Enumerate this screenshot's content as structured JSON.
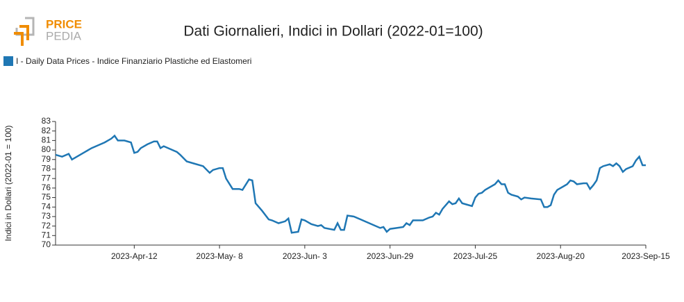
{
  "logo": {
    "top": "PRICE",
    "bottom": "PEDIA"
  },
  "chart_data": {
    "type": "line",
    "title": "Dati Giornalieri, Indici in Dollari (2022-01=100)",
    "ylabel": "Indici in Dollari (2022-01 = 100)",
    "x": [
      "2023-03-19",
      "2023-03-21",
      "2023-03-23",
      "2023-03-24",
      "2023-03-26",
      "2023-03-28",
      "2023-03-30",
      "2023-04-01",
      "2023-04-03",
      "2023-04-05",
      "2023-04-06",
      "2023-04-07",
      "2023-04-09",
      "2023-04-11",
      "2023-04-12",
      "2023-04-13",
      "2023-04-14",
      "2023-04-16",
      "2023-04-18",
      "2023-04-19",
      "2023-04-20",
      "2023-04-21",
      "2023-04-23",
      "2023-04-25",
      "2023-04-26",
      "2023-04-28",
      "2023-04-30",
      "2023-05-03",
      "2023-05-05",
      "2023-05-06",
      "2023-05-08",
      "2023-05-09",
      "2023-05-10",
      "2023-05-12",
      "2023-05-14",
      "2023-05-15",
      "2023-05-17",
      "2023-05-18",
      "2023-05-19",
      "2023-05-21",
      "2023-05-23",
      "2023-05-24",
      "2023-05-26",
      "2023-05-28",
      "2023-05-29",
      "2023-05-30",
      "2023-06-01",
      "2023-06-02",
      "2023-06-03",
      "2023-06-05",
      "2023-06-07",
      "2023-06-08",
      "2023-06-09",
      "2023-06-12",
      "2023-06-13",
      "2023-06-14",
      "2023-06-15",
      "2023-06-16",
      "2023-06-18",
      "2023-06-20",
      "2023-06-22",
      "2023-06-24",
      "2023-06-26",
      "2023-06-27",
      "2023-06-28",
      "2023-06-29",
      "2023-07-01",
      "2023-07-03",
      "2023-07-04",
      "2023-07-05",
      "2023-07-06",
      "2023-07-09",
      "2023-07-11",
      "2023-07-12",
      "2023-07-13",
      "2023-07-14",
      "2023-07-15",
      "2023-07-17",
      "2023-07-18",
      "2023-07-19",
      "2023-07-20",
      "2023-07-21",
      "2023-07-22",
      "2023-07-24",
      "2023-07-25",
      "2023-07-26",
      "2023-07-27",
      "2023-07-28",
      "2023-07-31",
      "2023-08-01",
      "2023-08-02",
      "2023-08-03",
      "2023-08-04",
      "2023-08-05",
      "2023-08-07",
      "2023-08-08",
      "2023-08-09",
      "2023-08-11",
      "2023-08-14",
      "2023-08-15",
      "2023-08-16",
      "2023-08-17",
      "2023-08-18",
      "2023-08-19",
      "2023-08-21",
      "2023-08-22",
      "2023-08-23",
      "2023-08-24",
      "2023-08-25",
      "2023-08-27",
      "2023-08-28",
      "2023-08-29",
      "2023-08-30",
      "2023-08-31",
      "2023-09-01",
      "2023-09-02",
      "2023-09-04",
      "2023-09-05",
      "2023-09-06",
      "2023-09-07",
      "2023-09-08",
      "2023-09-09",
      "2023-09-11",
      "2023-09-12",
      "2023-09-13",
      "2023-09-14",
      "2023-09-15"
    ],
    "series": [
      {
        "name": "I - Daily Data Prices - Indice Finanziario Plastiche ed Elastomeri",
        "color": "#1f77b4",
        "values": [
          79.5,
          79.3,
          79.6,
          79.0,
          79.4,
          79.8,
          80.2,
          80.5,
          80.8,
          81.2,
          81.5,
          81.0,
          81.0,
          80.8,
          79.7,
          79.8,
          80.2,
          80.6,
          80.9,
          80.9,
          80.2,
          80.4,
          80.1,
          79.8,
          79.5,
          78.8,
          78.6,
          78.3,
          77.6,
          77.9,
          78.1,
          78.1,
          77.0,
          75.9,
          75.9,
          75.8,
          76.9,
          76.8,
          74.4,
          73.6,
          72.7,
          72.6,
          72.3,
          72.5,
          72.8,
          71.3,
          71.4,
          72.7,
          72.6,
          72.2,
          72.0,
          72.1,
          71.8,
          71.6,
          72.3,
          71.6,
          71.6,
          73.1,
          73.0,
          72.7,
          72.4,
          72.1,
          71.8,
          71.9,
          71.4,
          71.7,
          71.8,
          71.9,
          72.3,
          72.1,
          72.6,
          72.6,
          72.9,
          73.0,
          73.4,
          73.2,
          73.8,
          74.6,
          74.3,
          74.4,
          74.9,
          74.4,
          74.3,
          74.1,
          75.0,
          75.4,
          75.5,
          75.8,
          76.4,
          76.8,
          76.4,
          76.4,
          75.5,
          75.3,
          75.1,
          74.8,
          75.0,
          74.9,
          74.8,
          74.0,
          74.0,
          74.2,
          75.3,
          75.8,
          76.2,
          76.4,
          76.8,
          76.7,
          76.4,
          76.5,
          76.5,
          75.9,
          76.3,
          76.8,
          78.1,
          78.3,
          78.5,
          78.3,
          78.6,
          78.3,
          77.7,
          78.0,
          78.3,
          78.9,
          79.3,
          78.4,
          78.4
        ]
      }
    ],
    "xlim": [
      "2023-03-19",
      "2023-09-15"
    ],
    "xticks": [
      {
        "value": "2023-04-12",
        "label": "2023-Apr-12"
      },
      {
        "value": "2023-05-08",
        "label": "2023-May- 8"
      },
      {
        "value": "2023-06-03",
        "label": "2023-Jun- 3"
      },
      {
        "value": "2023-06-29",
        "label": "2023-Jun-29"
      },
      {
        "value": "2023-07-25",
        "label": "2023-Jul-25"
      },
      {
        "value": "2023-08-20",
        "label": "2023-Aug-20"
      },
      {
        "value": "2023-09-15",
        "label": "2023-Sep-15"
      }
    ],
    "ylim": [
      70,
      83
    ],
    "yticks": [
      70,
      71,
      72,
      73,
      74,
      75,
      76,
      77,
      78,
      79,
      80,
      81,
      82,
      83
    ],
    "legend": "top-left"
  }
}
